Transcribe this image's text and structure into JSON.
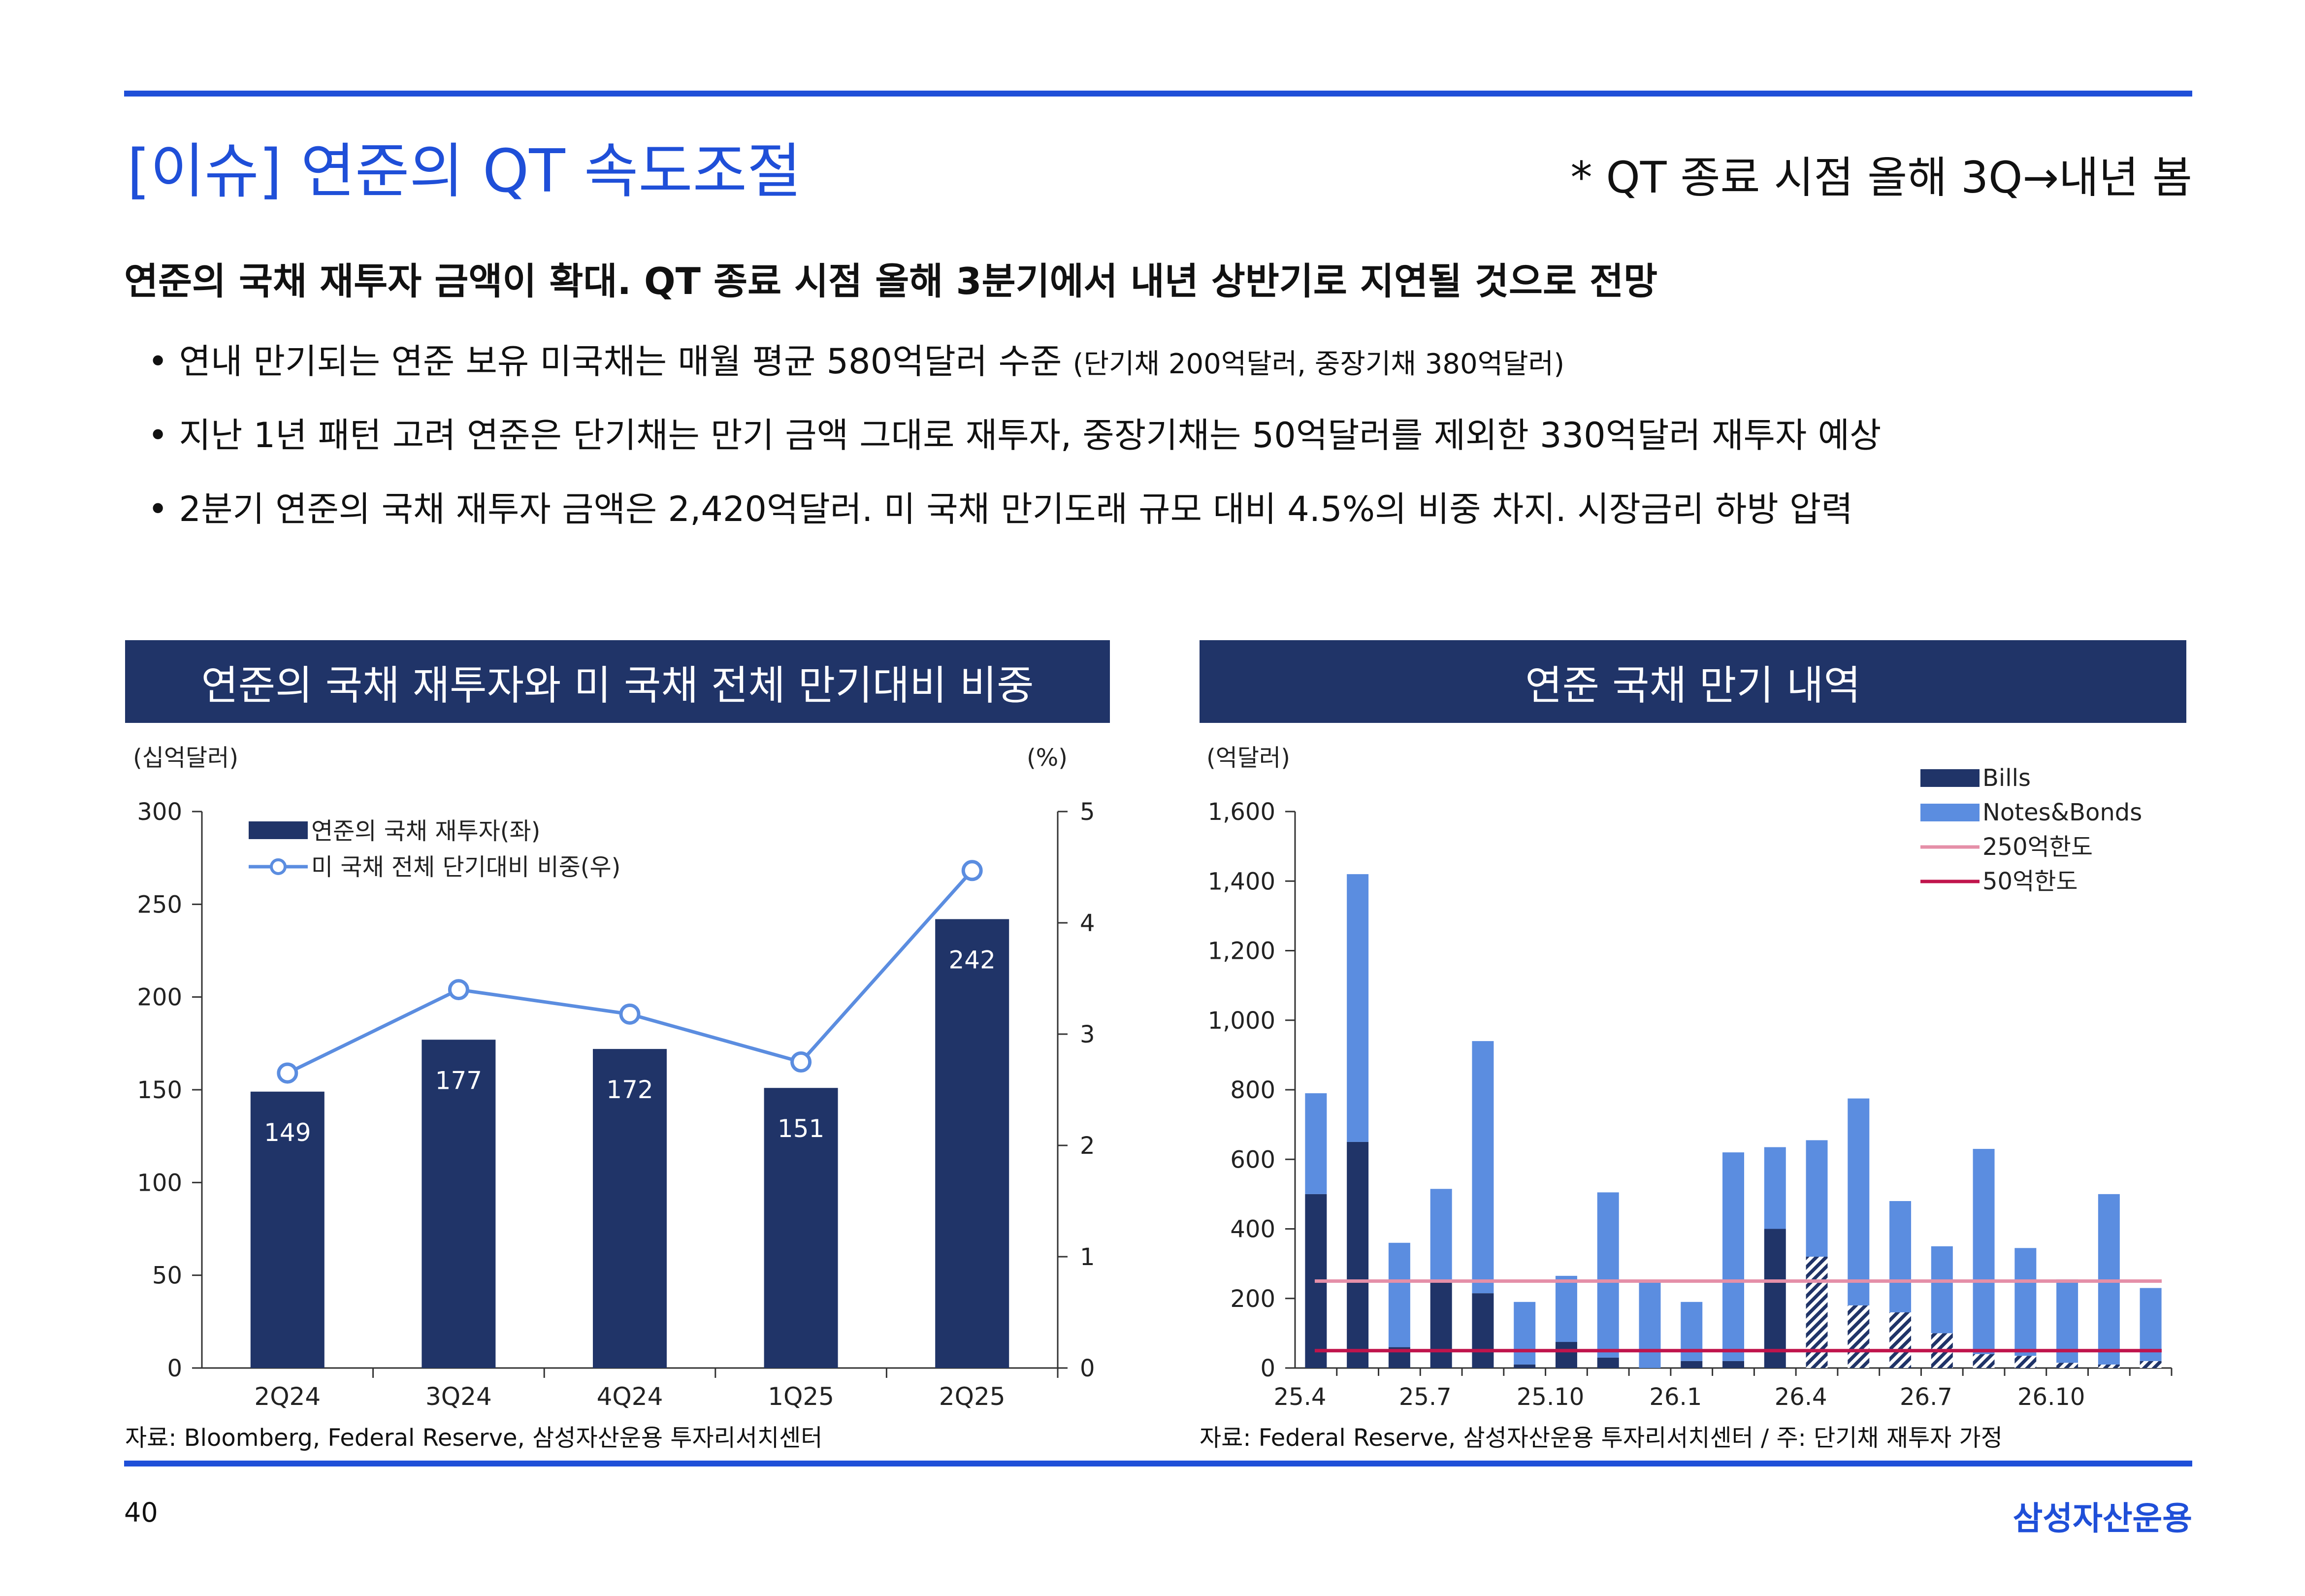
{
  "header": {
    "title": "[이슈] 연준의 QT 속도조절",
    "subnote": "* QT 종료 시점 올해 3Q→내년 봄"
  },
  "summary": {
    "headline": "연준의 국채 재투자 금액이 확대. QT 종료 시점 올해 3분기에서 내년 상반기로 지연될 것으로 전망",
    "bullets": [
      {
        "text": "• 연내 만기되는 연준 보유 미국채는 매월 평균 580억달러 수준 ",
        "note": "(단기채 200억달러, 중장기채 380억달러)"
      },
      {
        "text": "• 지난 1년 패턴 고려 연준은 단기채는 만기 금액 그대로 재투자, 중장기채는 50억달러를 제외한 330억달러 재투자 예상",
        "note": ""
      },
      {
        "text": "• 2분기 연준의 국채 재투자 금액은 2,420억달러. 미 국채 만기도래 규모 대비 4.5%의 비중 차지. 시장금리 하방 압력",
        "note": ""
      }
    ]
  },
  "left_panel": {
    "title": "연준의 국채 재투자와 미 국채 전체 만기대비 비중",
    "source": "자료:  Bloomberg, Federal Reserve, 삼성자산운용 투자리서치센터"
  },
  "right_panel": {
    "title": "연준 국채 만기 내역",
    "source": "자료: Federal Reserve, 삼성자산운용 투자리서치센터 / 주: 단기채 재투자 가정"
  },
  "footer": {
    "page_number": "40",
    "brand": "삼성자산운용"
  },
  "colors": {
    "accent": "#1f4fd8",
    "navy": "#203468",
    "notes_blue": "#5b8de0",
    "line_blue": "#5b8de0",
    "limit_250": "#e58fa8",
    "limit_50": "#c0144c"
  },
  "chart_data": [
    {
      "type": "bar",
      "title": "연준의 국채 재투자와 미 국채 전체 만기대비 비중",
      "ylabel": "(십억달러)",
      "y2label": "(%)",
      "categories": [
        "2Q24",
        "3Q24",
        "4Q24",
        "1Q25",
        "2Q25"
      ],
      "ylim": [
        0,
        300
      ],
      "yticks": [
        "0",
        "50",
        "100",
        "150",
        "200",
        "250",
        "300"
      ],
      "y2lim": [
        0,
        5
      ],
      "y2ticks": [
        "0",
        "1",
        "2",
        "3",
        "4",
        "5"
      ],
      "legend_position": "top-left",
      "series": [
        {
          "name": "연준의 국채 재투자(좌)",
          "kind": "bar",
          "axis": "left",
          "values": [
            149,
            177,
            172,
            151,
            242
          ],
          "labels": [
            "149",
            "177",
            "172",
            "151",
            "242"
          ]
        },
        {
          "name": "미 국채 전체 단기대비 비중(우)",
          "kind": "line",
          "axis": "right",
          "values": [
            2.65,
            3.4,
            3.18,
            2.75,
            4.47
          ]
        }
      ]
    },
    {
      "type": "bar",
      "stacked": true,
      "title": "연준 국채 만기 내역",
      "ylabel": "(억달러)",
      "ylim": [
        0,
        1600
      ],
      "yticks": [
        "0",
        "200",
        "400",
        "600",
        "800",
        "1,000",
        "1,200",
        "1,400",
        "1,600"
      ],
      "xtick_labels": [
        {
          "index": 0,
          "label": "25.4"
        },
        {
          "index": 3,
          "label": "25.7"
        },
        {
          "index": 6,
          "label": "25.10"
        },
        {
          "index": 9,
          "label": "26.1"
        },
        {
          "index": 12,
          "label": "26.4"
        },
        {
          "index": 15,
          "label": "26.7"
        },
        {
          "index": 18,
          "label": "26.10"
        }
      ],
      "categories": [
        "25.4",
        "25.5",
        "25.6",
        "25.7",
        "25.8",
        "25.9",
        "25.10",
        "25.11",
        "25.12",
        "26.1",
        "26.2",
        "26.3",
        "26.4",
        "26.5",
        "26.6",
        "26.7",
        "26.8",
        "26.9",
        "26.10",
        "26.11",
        "26.12"
      ],
      "legend_position": "top-right",
      "series": [
        {
          "name": "Bills",
          "kind": "bar",
          "values": [
            500,
            650,
            60,
            250,
            215,
            10,
            75,
            30,
            0,
            20,
            20,
            400,
            320,
            180,
            160,
            100,
            40,
            35,
            15,
            10,
            20
          ],
          "hatched_from_index": 12
        },
        {
          "name": "Notes&Bonds",
          "kind": "bar",
          "values": [
            290,
            770,
            300,
            265,
            725,
            180,
            190,
            475,
            245,
            170,
            600,
            235,
            335,
            595,
            320,
            250,
            590,
            310,
            240,
            490,
            210
          ]
        },
        {
          "name": "250억한도",
          "kind": "hline",
          "value": 250
        },
        {
          "name": "50억한도",
          "kind": "hline",
          "value": 50
        }
      ]
    }
  ]
}
